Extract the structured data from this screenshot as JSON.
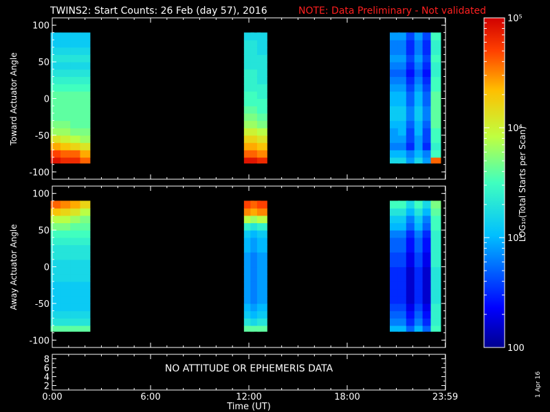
{
  "title": {
    "main": "TWINS2: Start Counts: 26 Feb (day  57), 2016",
    "note": "NOTE: Data Preliminary - Not validated"
  },
  "colorbar": {
    "label": "LOG₁₀(Total Starts per Scan)",
    "tick_labels": [
      "100",
      "10³",
      "10⁴",
      "10⁵"
    ],
    "range": [
      100,
      100000
    ]
  },
  "footer": {
    "xlabel": "Time (UT)",
    "x_tick_labels": [
      "0:00",
      "6:00",
      "12:00",
      "18:00",
      "23:59"
    ],
    "date_stamp": "1 Apr 16",
    "nodata_message": "NO ATTITUDE OR EPHEMERIS DATA"
  },
  "chart_data": [
    {
      "type": "heatmap",
      "ylabel": "Toward Actuator Angle",
      "y_tick_labels": [
        "100",
        "50",
        "0",
        "-50",
        "-100"
      ],
      "ylim": [
        -110,
        110
      ],
      "xlim": [
        0,
        24
      ],
      "data_y_range": [
        -88,
        90
      ],
      "x": [
        0.2,
        0.8,
        1.4,
        2.0,
        12.0,
        12.4,
        12.8,
        20.9,
        21.4,
        21.9,
        22.4,
        22.9,
        23.4
      ],
      "y": [
        -85,
        -75,
        -65,
        -55,
        -45,
        -35,
        -25,
        -15,
        -5,
        5,
        15,
        25,
        35,
        45,
        55,
        65,
        75,
        85
      ],
      "z": [
        [
          4.9,
          4.8,
          4.8,
          4.6,
          4.9,
          4.9,
          4.8,
          3.2,
          3.2,
          2.9,
          3.2,
          2.9,
          4.6
        ],
        [
          4.7,
          4.6,
          4.6,
          4.4,
          4.6,
          4.6,
          4.5,
          3.0,
          3.0,
          2.8,
          3.0,
          2.8,
          3.5
        ],
        [
          4.4,
          4.3,
          4.2,
          4.1,
          4.4,
          4.4,
          4.3,
          2.8,
          2.8,
          2.5,
          2.9,
          2.5,
          3.4
        ],
        [
          4.1,
          4.0,
          3.9,
          3.8,
          4.2,
          4.2,
          4.1,
          2.9,
          2.9,
          2.6,
          2.9,
          2.6,
          3.5
        ],
        [
          3.8,
          3.8,
          3.7,
          3.7,
          4.0,
          4.0,
          3.9,
          2.9,
          3.0,
          2.6,
          3.0,
          2.6,
          3.5
        ],
        [
          3.7,
          3.7,
          3.6,
          3.6,
          3.8,
          3.8,
          3.7,
          3.0,
          3.0,
          2.7,
          3.0,
          2.7,
          3.6
        ],
        [
          3.6,
          3.6,
          3.6,
          3.6,
          3.7,
          3.7,
          3.6,
          3.1,
          3.1,
          2.8,
          3.1,
          2.8,
          3.6
        ],
        [
          3.6,
          3.6,
          3.6,
          3.6,
          3.6,
          3.6,
          3.5,
          3.1,
          3.1,
          2.8,
          3.1,
          2.8,
          3.6
        ],
        [
          3.6,
          3.6,
          3.6,
          3.6,
          3.5,
          3.5,
          3.5,
          3.0,
          3.0,
          2.7,
          3.0,
          2.7,
          3.6
        ],
        [
          3.6,
          3.6,
          3.6,
          3.6,
          3.5,
          3.5,
          3.4,
          3.0,
          3.0,
          2.7,
          3.0,
          2.7,
          3.6
        ],
        [
          3.5,
          3.5,
          3.5,
          3.5,
          3.4,
          3.4,
          3.4,
          2.9,
          2.9,
          2.6,
          2.9,
          2.6,
          3.5
        ],
        [
          3.4,
          3.4,
          3.4,
          3.4,
          3.4,
          3.4,
          3.3,
          2.8,
          2.8,
          2.5,
          2.8,
          2.5,
          3.5
        ],
        [
          3.3,
          3.3,
          3.3,
          3.3,
          3.4,
          3.4,
          3.3,
          2.7,
          2.7,
          2.4,
          2.7,
          2.4,
          3.4
        ],
        [
          3.2,
          3.2,
          3.2,
          3.2,
          3.3,
          3.3,
          3.3,
          2.8,
          2.8,
          2.5,
          2.8,
          2.5,
          3.4
        ],
        [
          3.3,
          3.3,
          3.3,
          3.3,
          3.3,
          3.3,
          3.3,
          2.9,
          2.9,
          2.6,
          2.9,
          2.6,
          3.5
        ],
        [
          3.2,
          3.2,
          3.2,
          3.2,
          3.3,
          3.3,
          3.2,
          2.8,
          2.8,
          2.5,
          2.8,
          2.5,
          3.4
        ],
        [
          3.1,
          3.1,
          3.1,
          3.1,
          3.3,
          3.3,
          3.2,
          2.8,
          2.8,
          2.5,
          2.8,
          2.5,
          3.4
        ],
        [
          3.1,
          3.1,
          3.1,
          3.1,
          3.2,
          3.2,
          3.2,
          2.9,
          2.9,
          2.6,
          2.9,
          2.6,
          3.5
        ]
      ]
    },
    {
      "type": "heatmap",
      "ylabel": "Away Actuator Angle",
      "y_tick_labels": [
        "100",
        "50",
        "0",
        "-50",
        "-100"
      ],
      "ylim": [
        -110,
        110
      ],
      "xlim": [
        0,
        24
      ],
      "data_y_range": [
        -88,
        90
      ],
      "x": [
        0.2,
        0.8,
        1.4,
        2.0,
        12.0,
        12.4,
        12.8,
        20.9,
        21.4,
        21.9,
        22.4,
        22.9,
        23.4
      ],
      "y": [
        -85,
        -75,
        -65,
        -55,
        -45,
        -35,
        -25,
        -15,
        -5,
        5,
        15,
        25,
        35,
        45,
        55,
        65,
        75,
        85
      ],
      "z": [
        [
          3.6,
          3.6,
          3.6,
          3.6,
          3.6,
          3.6,
          3.6,
          3.0,
          3.0,
          2.7,
          3.0,
          2.7,
          3.5
        ],
        [
          3.3,
          3.3,
          3.3,
          3.3,
          3.3,
          3.2,
          3.3,
          2.8,
          2.8,
          2.5,
          2.8,
          2.5,
          3.4
        ],
        [
          3.2,
          3.2,
          3.2,
          3.2,
          3.1,
          3.0,
          3.1,
          2.7,
          2.7,
          2.4,
          2.7,
          2.4,
          3.4
        ],
        [
          3.1,
          3.1,
          3.1,
          3.1,
          3.0,
          2.9,
          3.0,
          2.6,
          2.6,
          2.3,
          2.6,
          2.3,
          3.4
        ],
        [
          3.1,
          3.1,
          3.1,
          3.1,
          2.9,
          2.8,
          2.9,
          2.5,
          2.5,
          2.2,
          2.5,
          2.2,
          3.3
        ],
        [
          3.1,
          3.1,
          3.1,
          3.1,
          2.9,
          2.8,
          2.9,
          2.5,
          2.5,
          2.2,
          2.5,
          2.2,
          3.3
        ],
        [
          3.1,
          3.1,
          3.1,
          3.1,
          2.9,
          2.8,
          2.9,
          2.5,
          2.5,
          2.2,
          2.5,
          2.2,
          3.3
        ],
        [
          3.2,
          3.2,
          3.2,
          3.2,
          2.9,
          2.8,
          2.9,
          2.5,
          2.5,
          2.2,
          2.5,
          2.2,
          3.3
        ],
        [
          3.2,
          3.2,
          3.2,
          3.2,
          2.9,
          2.8,
          2.9,
          2.5,
          2.5,
          2.2,
          2.5,
          2.2,
          3.3
        ],
        [
          3.2,
          3.2,
          3.2,
          3.2,
          2.9,
          2.8,
          2.9,
          2.6,
          2.6,
          2.3,
          2.6,
          2.3,
          3.4
        ],
        [
          3.3,
          3.3,
          3.3,
          3.3,
          2.9,
          2.8,
          2.9,
          2.6,
          2.6,
          2.3,
          2.6,
          2.3,
          3.4
        ],
        [
          3.3,
          3.3,
          3.3,
          3.3,
          3.0,
          2.9,
          3.0,
          2.7,
          2.7,
          2.4,
          2.7,
          2.4,
          3.4
        ],
        [
          3.4,
          3.4,
          3.4,
          3.4,
          3.0,
          2.9,
          3.0,
          2.7,
          2.7,
          2.4,
          2.7,
          2.4,
          3.4
        ],
        [
          3.5,
          3.5,
          3.5,
          3.5,
          3.1,
          3.0,
          3.1,
          2.8,
          2.8,
          2.5,
          2.8,
          2.5,
          3.4
        ],
        [
          3.7,
          3.7,
          3.6,
          3.6,
          3.4,
          3.3,
          3.4,
          3.0,
          3.0,
          2.7,
          3.0,
          2.7,
          3.5
        ],
        [
          3.9,
          3.9,
          3.8,
          3.7,
          3.9,
          3.8,
          3.9,
          3.1,
          3.1,
          2.8,
          3.1,
          2.8,
          3.5
        ],
        [
          4.3,
          4.2,
          4.1,
          3.9,
          4.5,
          4.4,
          4.5,
          3.3,
          3.3,
          3.0,
          3.3,
          3.0,
          3.6
        ],
        [
          4.6,
          4.5,
          4.4,
          4.2,
          4.7,
          4.6,
          4.7,
          3.5,
          3.5,
          3.2,
          3.5,
          3.2,
          3.7
        ]
      ]
    },
    {
      "type": "line",
      "y_tick_labels": [
        "8",
        "6",
        "4",
        "2"
      ],
      "ylim": [
        1,
        9
      ],
      "xlim": [
        0,
        24
      ],
      "series": []
    }
  ]
}
